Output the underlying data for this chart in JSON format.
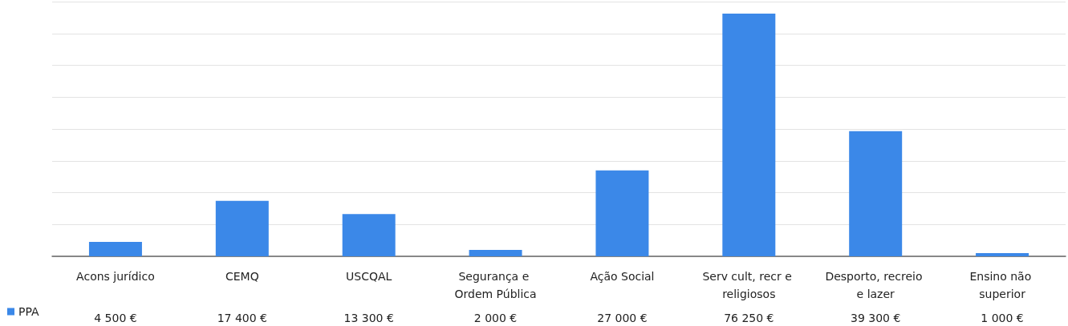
{
  "chart_data": {
    "type": "bar",
    "categories": [
      "Acons jurídico",
      "CEMQ",
      "USCQAL",
      "Segurança e Ordem Pública",
      "Ação Social",
      "Serv cult, recr e religiosos",
      "Desporto, recreio e lazer",
      "Ensino não superior"
    ],
    "series": [
      {
        "name": "PPA",
        "color": "#3b88e8",
        "values": [
          4500,
          17400,
          13300,
          2000,
          27000,
          76250,
          39300,
          1000
        ],
        "value_labels": [
          "4 500 €",
          "17 400 €",
          "13 300 €",
          "2 000 €",
          "27 000 €",
          "76 250 €",
          "39 300 €",
          "1 000 €"
        ]
      }
    ],
    "ylim": [
      0,
      80000
    ],
    "yticks": [
      {
        "value": 0,
        "label": null
      },
      {
        "value": 10000,
        "label": null
      },
      {
        "value": 20000,
        "label": null
      },
      {
        "value": 30000,
        "label": null
      },
      {
        "value": 40000,
        "label": null
      },
      {
        "value": 50000,
        "label": null
      },
      {
        "value": 60000,
        "label": null
      },
      {
        "value": 70000,
        "label": null
      },
      {
        "value": 80000,
        "label": null
      }
    ],
    "tick_labels": "x",
    "grid": "y",
    "legend": "bottom left"
  }
}
